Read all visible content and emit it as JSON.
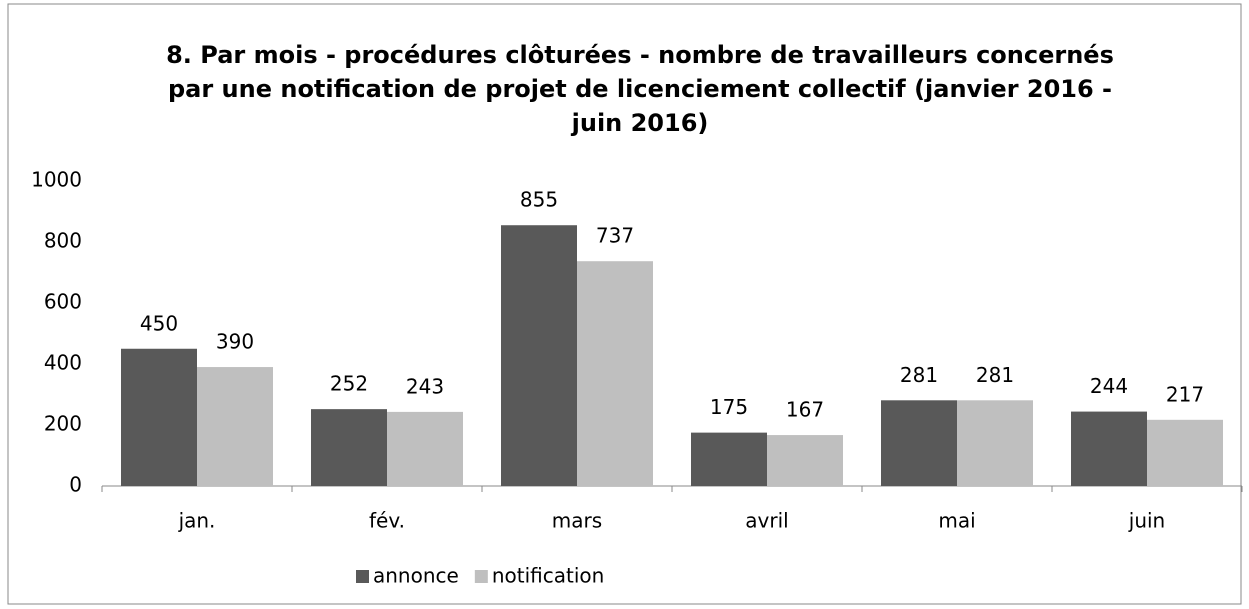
{
  "chart_data": {
    "type": "bar",
    "title": "8. Par mois - procédures clôturées - nombre de travailleurs concernés par une notification de projet de licenciement collectif (janvier 2016 - juin 2016)",
    "categories": [
      "jan.",
      "fév.",
      "mars",
      "avril",
      "mai",
      "juin"
    ],
    "series": [
      {
        "name": "annonce",
        "color": "#595959",
        "values": [
          450,
          252,
          855,
          175,
          281,
          244
        ]
      },
      {
        "name": "notification",
        "color": "#bfbfbf",
        "values": [
          390,
          243,
          737,
          167,
          281,
          217
        ]
      }
    ],
    "ylim": [
      0,
      1000
    ],
    "yticks": [
      0,
      200,
      400,
      600,
      800,
      1000
    ],
    "grid": false,
    "legend": "bottom"
  }
}
